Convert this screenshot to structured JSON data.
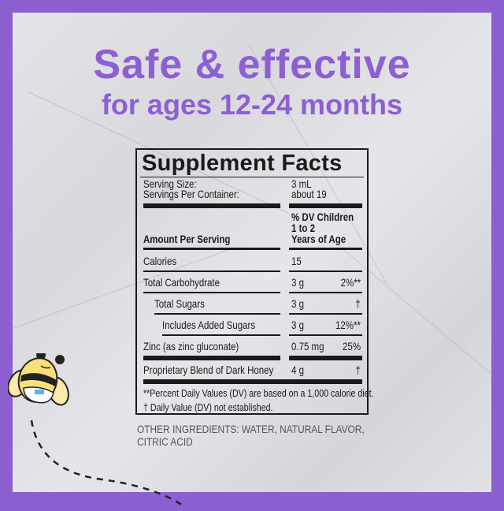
{
  "headline": {
    "line1": "Safe & effective",
    "line2": "for ages 12-24 months"
  },
  "colors": {
    "brand_purple": "#8b5fd0",
    "text": "#1a1a1a"
  },
  "label": {
    "title": "Supplement Facts",
    "serving_size_label": "Serving Size:",
    "serving_size_value": "3 mL",
    "servings_per_container_label": "Servings Per Container:",
    "servings_per_container_value": "about 19",
    "amount_header": "Amount Per Serving",
    "dv_header_1": "% DV Children",
    "dv_header_2": "1 to 2",
    "dv_header_3": "Years of Age",
    "rows": [
      {
        "name": "Calories",
        "amount": "15",
        "dv": ""
      },
      {
        "name": "Total Carbohydrate",
        "amount": "3 g",
        "dv": "2%**"
      },
      {
        "name": "Total Sugars",
        "amount": "3 g",
        "dv": "†"
      },
      {
        "name": "Includes Added Sugars",
        "amount": "3 g",
        "dv": "12%**"
      },
      {
        "name": "Zinc (as zinc gluconate)",
        "amount": "0.75 mg",
        "dv": "25%"
      },
      {
        "name": "Proprietary Blend of Dark Honey",
        "amount": "4 g",
        "dv": "†"
      }
    ],
    "footnote_1": "**Percent Daily Values (DV) are based on a 1,000 calorie diet.",
    "footnote_2": "† Daily Value (DV) not established."
  },
  "other_ingredients": "OTHER INGREDIENTS: WATER, NATURAL FLAVOR, CITRIC ACID",
  "mascot_icon": "bee-mascot-icon"
}
